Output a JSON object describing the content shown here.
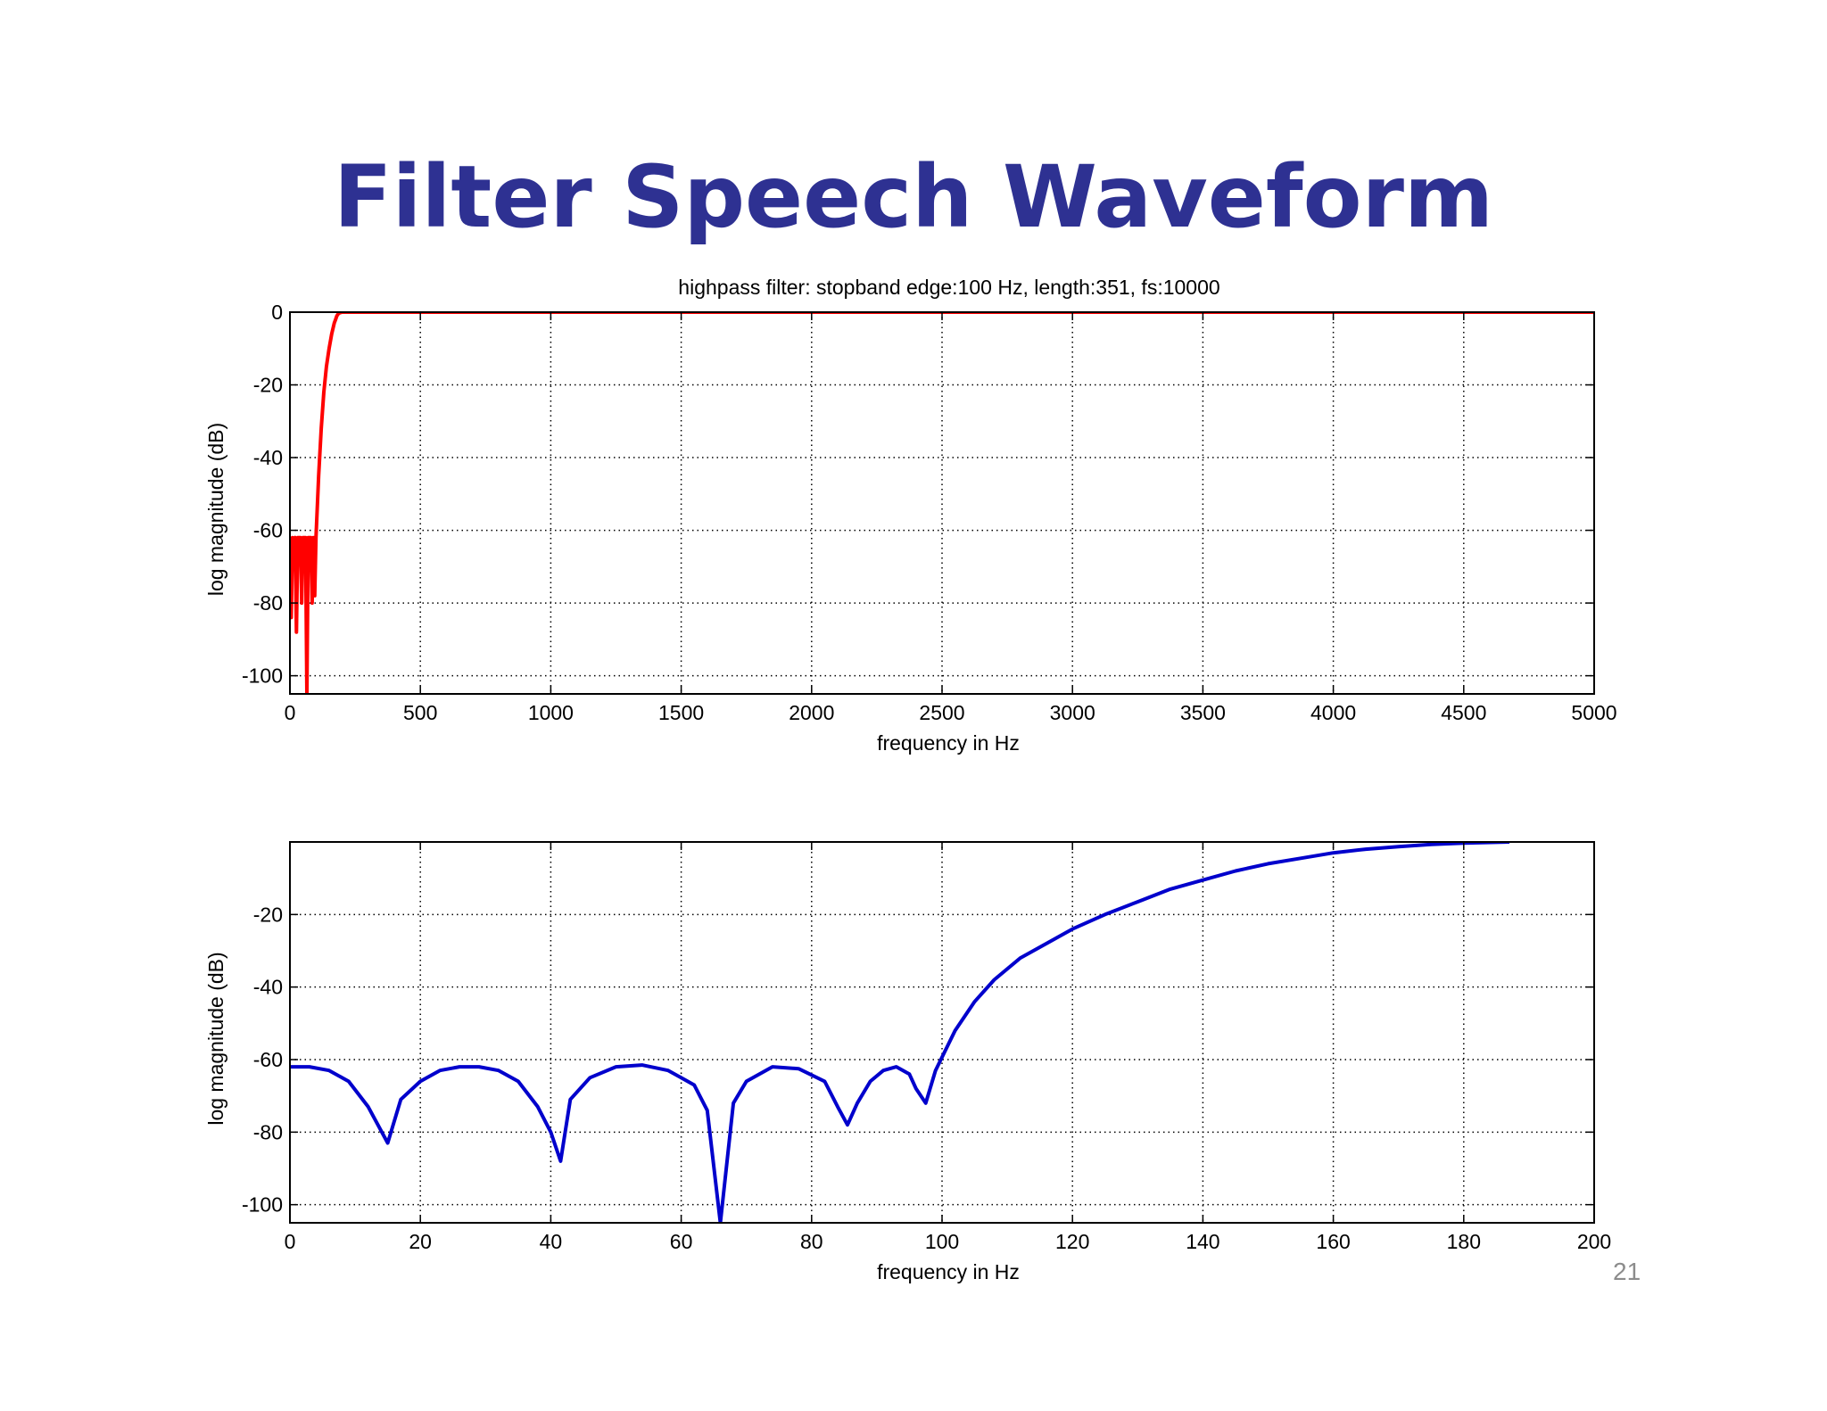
{
  "slide": {
    "title": "Filter Speech Waveform",
    "page_number": "21"
  },
  "colors": {
    "title": "#2e3192",
    "series_top": "#ff0000",
    "series_bottom": "#0000cc",
    "grid": "#000000"
  },
  "chart_data": [
    {
      "type": "line",
      "title": "highpass filter: stopband edge:100 Hz, length:351, fs:10000",
      "xlabel": "frequency in Hz",
      "ylabel": "log magnitude (dB)",
      "xlim": [
        0,
        5000
      ],
      "ylim": [
        -105,
        0
      ],
      "xticks": [
        0,
        500,
        1000,
        1500,
        2000,
        2500,
        3000,
        3500,
        4000,
        4500,
        5000
      ],
      "yticks": [
        0,
        -20,
        -40,
        -60,
        -80,
        -100
      ],
      "grid": true,
      "series": [
        {
          "color": "#ff0000",
          "x": [
            0,
            5,
            10,
            15,
            20,
            25,
            30,
            35,
            40,
            45,
            50,
            55,
            60,
            65,
            70,
            75,
            80,
            85,
            90,
            95,
            100,
            110,
            120,
            130,
            140,
            150,
            160,
            170,
            175,
            180,
            185,
            190,
            200,
            5000
          ],
          "y": [
            -62,
            -84,
            -62,
            -63,
            -62,
            -88,
            -62,
            -62,
            -62,
            -80,
            -62,
            -62,
            -62,
            -105,
            -62,
            -62,
            -62,
            -80,
            -62,
            -78,
            -62,
            -45,
            -32,
            -22,
            -15,
            -10,
            -6,
            -3,
            -2,
            -1,
            -0.5,
            -0.2,
            0,
            0
          ]
        }
      ]
    },
    {
      "type": "line",
      "xlabel": "frequency in Hz",
      "ylabel": "log magnitude (dB)",
      "xlim": [
        0,
        200
      ],
      "ylim": [
        -105,
        0
      ],
      "xticks": [
        0,
        20,
        40,
        60,
        80,
        100,
        120,
        140,
        160,
        180,
        200
      ],
      "yticks": [
        -20,
        -40,
        -60,
        -80,
        -100
      ],
      "grid": true,
      "series": [
        {
          "color": "#0000cc",
          "x": [
            0,
            3,
            6,
            9,
            12,
            15,
            17,
            20,
            23,
            26,
            29,
            32,
            35,
            38,
            40,
            41.5,
            43,
            46,
            50,
            54,
            58,
            62,
            64,
            66,
            68,
            70,
            74,
            78,
            82,
            84,
            85.5,
            87,
            89,
            91,
            93,
            95,
            96,
            97.5,
            99,
            102,
            105,
            108,
            112,
            116,
            120,
            125,
            130,
            135,
            140,
            145,
            150,
            155,
            160,
            165,
            170,
            175,
            180,
            187
          ],
          "y": [
            -62,
            -62,
            -63,
            -66,
            -73,
            -83,
            -71,
            -66,
            -63,
            -62,
            -62,
            -63,
            -66,
            -73,
            -80,
            -88,
            -71,
            -65,
            -62,
            -61.5,
            -63,
            -67,
            -74,
            -105,
            -72,
            -66,
            -62,
            -62.5,
            -66,
            -73,
            -78,
            -72,
            -66,
            -63,
            -62,
            -64,
            -68,
            -72,
            -63,
            -52,
            -44,
            -38,
            -32,
            -28,
            -24,
            -20,
            -16.5,
            -13,
            -10.5,
            -8,
            -6,
            -4.5,
            -3,
            -2,
            -1.3,
            -0.7,
            -0.3,
            0
          ]
        }
      ]
    }
  ]
}
